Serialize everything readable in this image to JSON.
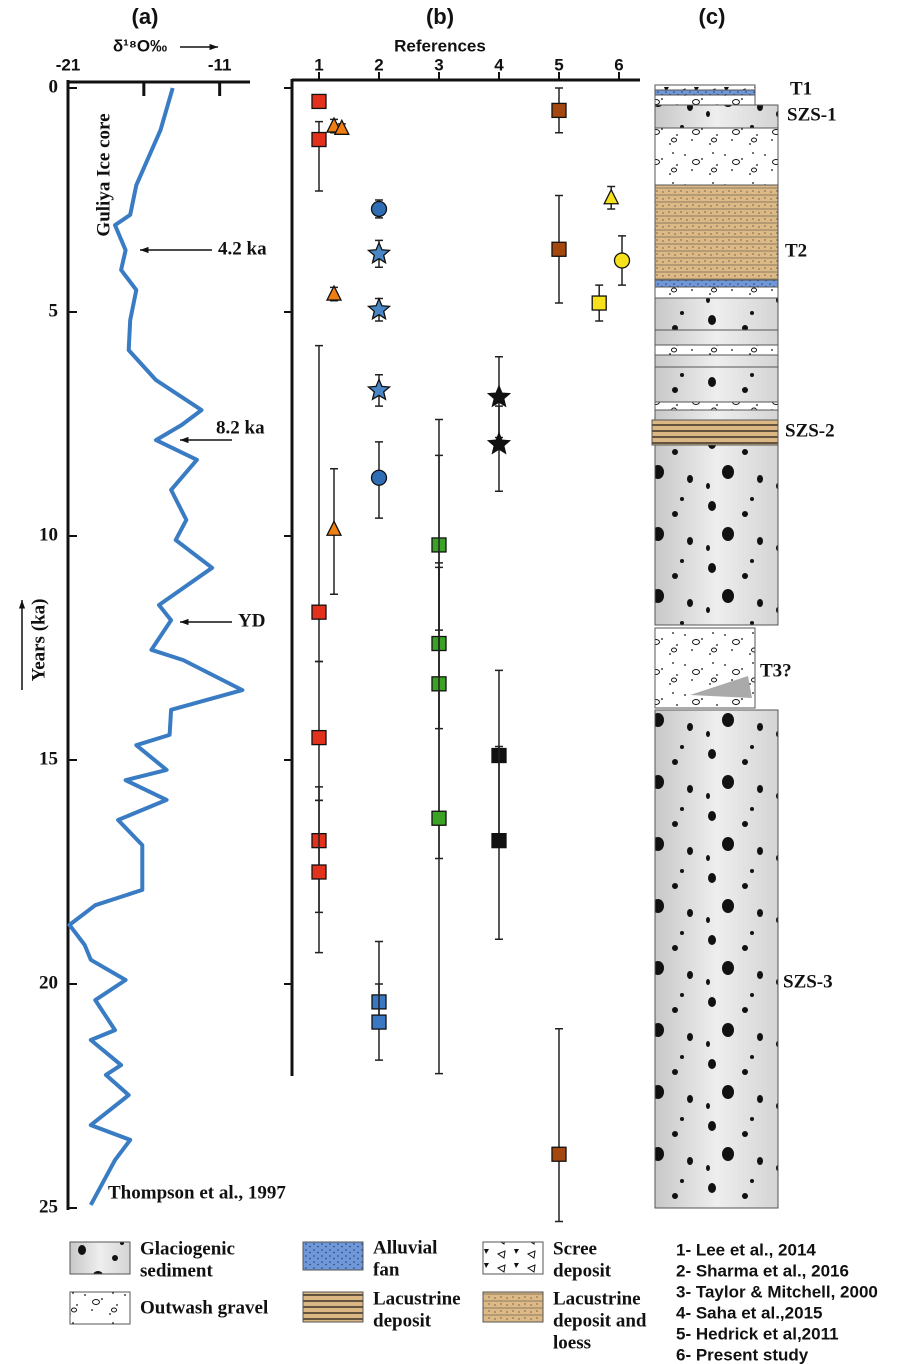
{
  "chart_data": [
    {
      "type": "line",
      "panel_label": "(a)",
      "x_label": "δ¹⁸O‰",
      "y_label": "Years (ka)",
      "xlim": [
        -21,
        -9
      ],
      "xticks": [
        -21,
        -11
      ],
      "xminor_ticks": [
        -16
      ],
      "ylim": [
        0,
        25
      ],
      "yticks": [
        0,
        5,
        10,
        15,
        20,
        25
      ],
      "color": "#3a7cc3",
      "values": [
        -14.1,
        -14.9,
        -16.5,
        -16.9,
        -17.9,
        -17.2,
        -17.5,
        -16.5,
        -16.9,
        -17.0,
        -15.2,
        -12.2,
        -13.5,
        -15.2,
        -12.5,
        -14.2,
        -13.2,
        -13.9,
        -11.5,
        -15.0,
        -14.2,
        -15.5,
        -13.4,
        -9.5,
        -14.2,
        -14.3,
        -16.5,
        -14.5,
        -17.2,
        -14.5,
        -17.7,
        -16.1,
        -16.1,
        -19.2,
        -20.9,
        -19.9,
        -19.5,
        -17.2,
        -19.2,
        -17.9,
        -19.5,
        -17.5,
        -18.5,
        -17.0,
        -19.5,
        -16.9,
        -17.9,
        -19.5
      ],
      "ages": [
        0,
        0.94,
        2.17,
        2.83,
        3.06,
        3.62,
        4.06,
        4.51,
        5.18,
        5.85,
        6.52,
        7.19,
        7.52,
        7.86,
        8.3,
        8.97,
        9.64,
        10.09,
        10.71,
        11.54,
        11.88,
        12.54,
        12.77,
        13.44,
        13.88,
        14.44,
        14.67,
        15.22,
        15.45,
        15.89,
        16.34,
        16.9,
        17.9,
        18.24,
        18.68,
        19.13,
        19.46,
        19.91,
        20.36,
        21.03,
        21.25,
        21.81,
        22.03,
        22.48,
        23.15,
        23.48,
        23.93,
        24.93
      ],
      "annotations": [
        "Guliya Ice core",
        "4.2 ka",
        "8.2 ka",
        "YD",
        "Thompson et al., 1997"
      ]
    },
    {
      "type": "scatter",
      "panel_label": "(b)",
      "x_label": "References",
      "xlim": [
        0.55,
        6.35
      ],
      "xticks": [
        1,
        2,
        3,
        4,
        5,
        6
      ],
      "ylim": [
        0,
        25
      ],
      "yticks": [
        0,
        5,
        10,
        15,
        20
      ],
      "series": [
        {
          "marker": "square",
          "color": "#e2311d",
          "x": [
            1,
            1,
            1,
            1,
            1,
            1
          ],
          "values": [
            0.3,
            1.15,
            11.7,
            14.5,
            16.8,
            17.5
          ],
          "low": [
            0.2,
            0.75,
            5.75,
            12.8,
            15.6,
            15.9
          ],
          "high": [
            0.4,
            2.3,
            12.8,
            15.9,
            18.4,
            19.3
          ]
        },
        {
          "marker": "triangle",
          "color": "#f07f13",
          "x": [
            1.25,
            1.38,
            1.25,
            1.25
          ],
          "values": [
            0.85,
            0.9,
            4.6,
            9.85
          ],
          "low": [
            0.7,
            0.8,
            4.45,
            8.5
          ],
          "high": [
            1.0,
            1.0,
            4.75,
            11.3
          ]
        },
        {
          "marker": "circle",
          "color": "#2f6db5",
          "x": [
            2,
            2
          ],
          "values": [
            2.7,
            8.7
          ],
          "low": [
            2.5,
            7.9
          ],
          "high": [
            2.9,
            9.6
          ]
        },
        {
          "marker": "star",
          "color": "#4a86c5",
          "x": [
            2,
            2,
            2
          ],
          "values": [
            3.7,
            4.95,
            6.75
          ],
          "low": [
            3.4,
            4.7,
            6.4
          ],
          "high": [
            4.0,
            5.2,
            7.1
          ]
        },
        {
          "marker": "square",
          "color": "#3a78c2",
          "x": [
            2,
            2
          ],
          "values": [
            20.4,
            20.85
          ],
          "low": [
            19.05,
            20.0
          ],
          "high": [
            20.8,
            21.7
          ]
        },
        {
          "marker": "square",
          "color": "#3aa325",
          "x": [
            3,
            3,
            3,
            3
          ],
          "values": [
            10.2,
            12.4,
            13.3,
            16.3
          ],
          "low": [
            8.2,
            10.6,
            7.4,
            10.7
          ],
          "high": [
            12.1,
            14.3,
            17.2,
            22.0
          ]
        },
        {
          "marker": "star",
          "color": "#111111",
          "x": [
            4,
            4
          ],
          "values": [
            6.9,
            7.95
          ],
          "low": [
            6.0,
            7.1
          ],
          "high": [
            7.8,
            9.0
          ]
        },
        {
          "marker": "square",
          "color": "#111111",
          "x": [
            4,
            4
          ],
          "values": [
            14.9,
            16.8
          ],
          "low": [
            13.0,
            14.7
          ],
          "high": [
            16.8,
            19.0
          ]
        },
        {
          "marker": "square",
          "color": "#a5480f",
          "x": [
            5,
            5,
            5
          ],
          "values": [
            0.5,
            3.6,
            23.8
          ],
          "low": [
            0,
            2.4,
            21.0
          ],
          "high": [
            1.0,
            4.8,
            25.3
          ]
        },
        {
          "marker": "triangle",
          "color": "#f7e11b",
          "x": [
            5.87
          ],
          "values": [
            2.45
          ],
          "low": [
            2.2
          ],
          "high": [
            2.7
          ]
        },
        {
          "marker": "circle",
          "color": "#f7e11b",
          "x": [
            6.05
          ],
          "values": [
            3.85
          ],
          "low": [
            3.3
          ],
          "high": [
            4.4
          ]
        },
        {
          "marker": "square",
          "color": "#f7e11b",
          "x": [
            5.67
          ],
          "values": [
            4.8
          ],
          "low": [
            4.4
          ],
          "high": [
            5.2
          ]
        }
      ]
    }
  ],
  "column": {
    "panel_label": "(c)",
    "labels": [
      "T1",
      "SZS-1",
      "T2",
      "SZS-2",
      "T3?",
      "SZS-3"
    ]
  },
  "legend": {
    "items": [
      [
        "Glaciogenic",
        "sediment"
      ],
      [
        "Alluvial",
        "fan"
      ],
      [
        "Scree",
        "deposit"
      ],
      [
        "Outwash gravel"
      ],
      [
        "Lacustrine",
        "deposit"
      ],
      [
        "Lacustrine",
        "deposit and",
        "loess"
      ]
    ]
  },
  "references": [
    "1- Lee et al., 2014",
    "2- Sharma et al., 2016",
    "3- Taylor & Mitchell, 2000",
    "4- Saha et al.,2015",
    "5- Hedrick et al,2011",
    "6- Present study"
  ]
}
